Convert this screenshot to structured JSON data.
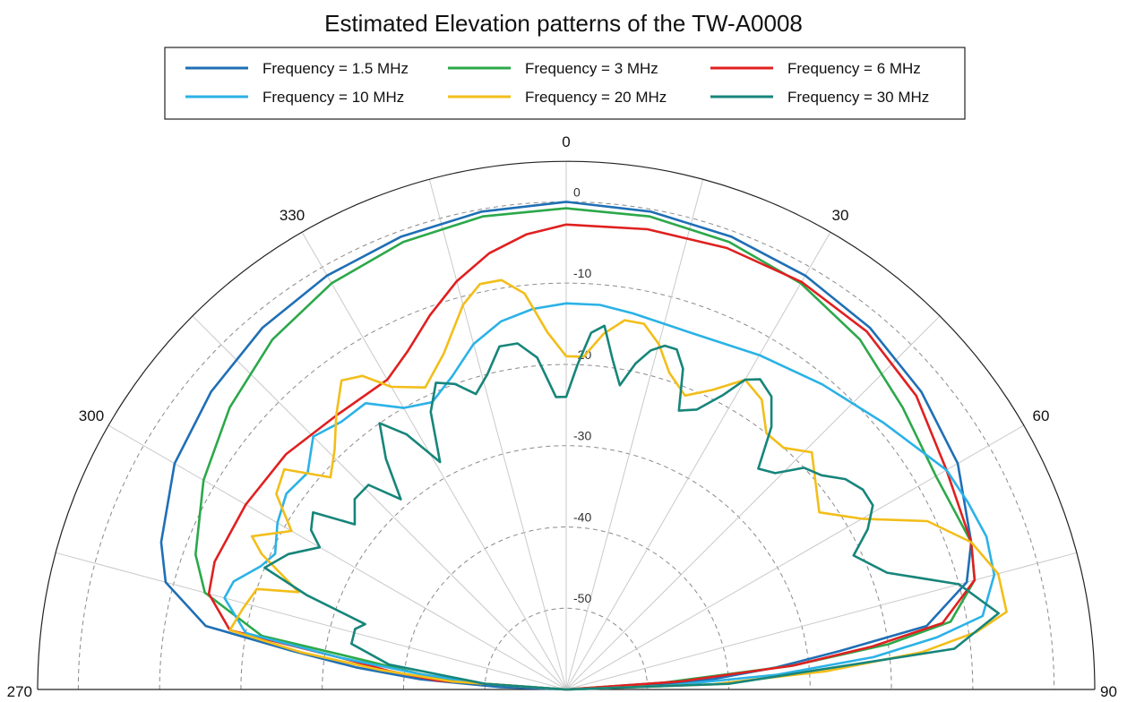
{
  "chart_data": {
    "type": "polar-line",
    "title": "Estimated Elevation patterns of the TW-A0008",
    "angle_ticks": [
      "270",
      "300",
      "330",
      "0",
      "30",
      "60",
      "90"
    ],
    "angle_tick_values": [
      270,
      300,
      330,
      0,
      30,
      60,
      90
    ],
    "angle_range": [
      -90,
      90
    ],
    "radial_ticks": [
      "0",
      "-10",
      "-20",
      "-30",
      "-40",
      "-50"
    ],
    "radial_tick_values": [
      0,
      -10,
      -20,
      -30,
      -40,
      -50
    ],
    "rlim": [
      -60,
      5
    ],
    "grid": true,
    "legend_position": "top",
    "series": [
      {
        "name": "Frequency = 1.5 MHz",
        "color": "#1f6fb5",
        "angles": [
          -90,
          -88,
          -86,
          -84,
          -82,
          -80,
          -75,
          -70,
          -60,
          -50,
          -40,
          -30,
          -20,
          -10,
          0,
          10,
          20,
          30,
          40,
          50,
          60,
          70,
          75,
          80,
          82,
          84,
          86,
          88,
          90
        ],
        "values": [
          -60,
          -52,
          -42,
          -34,
          -26,
          -15,
          -9,
          -7,
          -4.4,
          -3,
          -1.9,
          -1.2,
          -0.7,
          -0.3,
          0,
          -0.3,
          -0.7,
          -1.2,
          -1.9,
          -3,
          -4.4,
          -7,
          -9,
          -15,
          -26,
          -34,
          -42,
          -52,
          -60
        ]
      },
      {
        "name": "Frequency = 3 MHz",
        "color": "#2ca84a",
        "angles": [
          -90,
          -86,
          -84,
          -82,
          -80,
          -75,
          -70,
          -60,
          -50,
          -40,
          -30,
          -20,
          -10,
          0,
          10,
          20,
          30,
          40,
          50,
          60,
          70,
          75,
          80,
          82,
          84,
          86,
          90
        ],
        "values": [
          -60,
          -48,
          -42,
          -36,
          -22,
          -14,
          -11.5,
          -8.5,
          -6,
          -3.8,
          -2.3,
          -1.4,
          -0.9,
          -0.8,
          -0.9,
          -1.4,
          -2.3,
          -3.8,
          -6,
          -7.5,
          -7,
          -8,
          -12,
          -20,
          -32,
          -48,
          -60
        ]
      },
      {
        "name": "Frequency = 6 MHz",
        "color": "#e02020",
        "angles": [
          -90,
          -86,
          -84,
          -82,
          -80,
          -75,
          -70,
          -60,
          -50,
          -40,
          -30,
          -25,
          -20,
          -15,
          -10,
          -5,
          0,
          10,
          20,
          30,
          40,
          50,
          60,
          70,
          75,
          80,
          82,
          84,
          86,
          90
        ],
        "values": [
          -60,
          -44,
          -38,
          -32,
          -18,
          -14.5,
          -14,
          -14.5,
          -15,
          -16,
          -16,
          -14,
          -11,
          -8,
          -5.5,
          -3.8,
          -2.8,
          -2.5,
          -2.2,
          -2.1,
          -2.5,
          -3.8,
          -6,
          -7,
          -8,
          -13,
          -22,
          -32,
          -46,
          -60
        ]
      },
      {
        "name": "Frequency = 10 MHz",
        "color": "#2bb2e6",
        "angles": [
          -90,
          -86,
          -84,
          -82,
          -80,
          -75,
          -72,
          -68,
          -65,
          -60,
          -55,
          -50,
          -45,
          -40,
          -35,
          -30,
          -25,
          -20,
          -15,
          -10,
          -5,
          0,
          5,
          10,
          20,
          30,
          40,
          50,
          60,
          65,
          70,
          75,
          80,
          82,
          84,
          86,
          88,
          90
        ],
        "values": [
          -60,
          -50,
          -42,
          -32,
          -20,
          -16.5,
          -17,
          -19.5,
          -20.5,
          -19,
          -18,
          -18.5,
          -16,
          -17,
          -17,
          -20,
          -21,
          -19,
          -16,
          -14,
          -13,
          -12.5,
          -12.5,
          -13,
          -13.5,
          -12.5,
          -11,
          -9,
          -6,
          -5.5,
          -5,
          -5.5,
          -8,
          -14,
          -22,
          -34,
          -48,
          -60
        ]
      },
      {
        "name": "Frequency = 20 MHz",
        "color": "#f2be1a",
        "angles": [
          -90,
          -86,
          -84,
          -82,
          -80,
          -76,
          -72,
          -70,
          -66,
          -64,
          -60,
          -56,
          -52,
          -48,
          -44,
          -40,
          -36,
          -33,
          -30,
          -25,
          -20,
          -15,
          -12,
          -9,
          -6,
          -3,
          0,
          3,
          6,
          9,
          12,
          15,
          18,
          22,
          26,
          30,
          34,
          38,
          42,
          46,
          50,
          55,
          60,
          65,
          70,
          75,
          80,
          82,
          84,
          86,
          88,
          90
        ],
        "values": [
          -60,
          -46,
          -37,
          -27,
          -18,
          -19,
          -20,
          -25,
          -19,
          -17,
          -21,
          -17,
          -16,
          -21,
          -19,
          -16,
          -13,
          -14,
          -17,
          -19,
          -16,
          -11,
          -9,
          -9,
          -11,
          -16,
          -19,
          -19,
          -16,
          -14,
          -14,
          -16,
          -19,
          -21,
          -19,
          -16,
          -17,
          -20,
          -20,
          -18,
          -20,
          -22,
          -18,
          -11,
          -7,
          -5,
          -5,
          -9,
          -16,
          -28,
          -42,
          -60
        ]
      },
      {
        "name": "Frequency = 30 MHz",
        "color": "#17857a",
        "angles": [
          -90,
          -86,
          -82,
          -78,
          -74,
          -72,
          -70,
          -68,
          -64,
          -60,
          -58,
          -55,
          -52,
          -48,
          -44,
          -41,
          -38,
          -35,
          -32,
          -29,
          -26,
          -23,
          -20,
          -17,
          -14,
          -11,
          -8,
          -5,
          -2,
          0,
          2,
          4,
          6,
          8,
          10,
          12,
          14,
          16,
          18,
          20,
          22,
          25,
          28,
          30,
          32,
          35,
          38,
          41,
          44,
          47,
          50,
          53,
          56,
          59,
          62,
          65,
          70,
          75,
          80,
          84,
          88,
          90
        ],
        "values": [
          -60,
          -50,
          -38,
          -33,
          -33,
          -34,
          -26,
          -20,
          -22,
          -25,
          -23,
          -22,
          -27,
          -25,
          -25,
          -29,
          -24,
          -20,
          -23,
          -28,
          -22,
          -19,
          -20,
          -22,
          -20,
          -17,
          -17,
          -19,
          -24,
          -24,
          -20,
          -16,
          -15,
          -19,
          -22,
          -19,
          -17,
          -16,
          -16,
          -18,
          -23,
          -22,
          -19,
          -16,
          -15,
          -16,
          -19,
          -24,
          -23,
          -20,
          -19,
          -17,
          -16,
          -16,
          -18,
          -21,
          -18,
          -10,
          -6,
          -12,
          -40,
          -60
        ]
      }
    ]
  }
}
